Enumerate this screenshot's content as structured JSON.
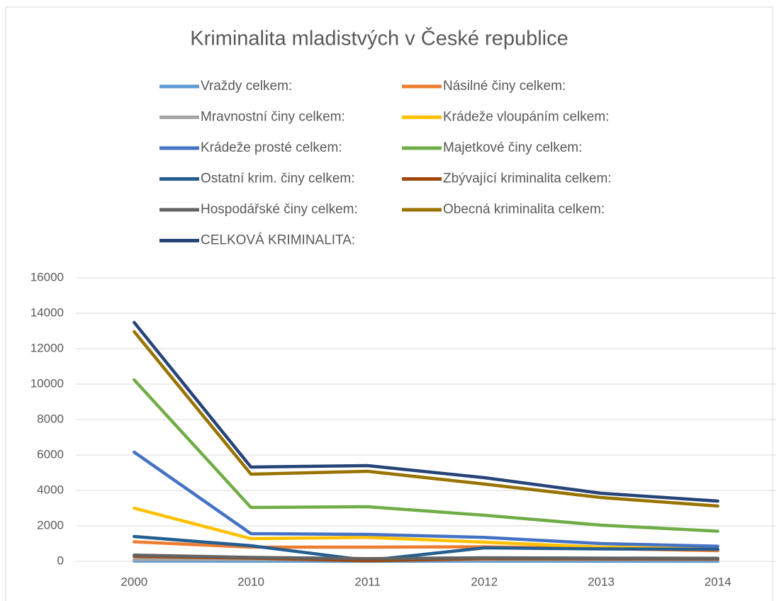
{
  "chart_data": {
    "type": "line",
    "title": "Kriminalita mladistvých v České republice",
    "categories": [
      "2000",
      "2010",
      "2011",
      "2012",
      "2013",
      "2014"
    ],
    "series": [
      {
        "name": "Vraždy celkem:",
        "color": "#5b9bd5",
        "values": [
          15,
          10,
          5,
          10,
          5,
          5
        ]
      },
      {
        "name": "Násilné činy celkem:",
        "color": "#ed7d31",
        "values": [
          1100,
          800,
          800,
          820,
          720,
          600
        ]
      },
      {
        "name": "Mravnostní činy celkem:",
        "color": "#a5a5a5",
        "values": [
          100,
          100,
          80,
          90,
          100,
          100
        ]
      },
      {
        "name": "Krádeže vloupáním celkem:",
        "color": "#ffc000",
        "values": [
          3000,
          1280,
          1350,
          1080,
          800,
          700
        ]
      },
      {
        "name": "Krádeže prosté celkem:",
        "color": "#4472c4",
        "values": [
          6160,
          1560,
          1520,
          1350,
          1000,
          850
        ]
      },
      {
        "name": "Majetkové činy celkem:",
        "color": "#70ad47",
        "values": [
          10240,
          3040,
          3080,
          2600,
          2040,
          1700
        ]
      },
      {
        "name": "Ostatní krim. činy celkem:",
        "color": "#255e91",
        "values": [
          1400,
          880,
          50,
          760,
          700,
          680
        ]
      },
      {
        "name": "Zbývající kriminalita celkem:",
        "color": "#9e480e",
        "values": [
          280,
          180,
          30,
          150,
          140,
          130
        ]
      },
      {
        "name": "Hospodářské činy celkem:",
        "color": "#636363",
        "values": [
          350,
          220,
          150,
          200,
          180,
          170
        ]
      },
      {
        "name": "Obecná kriminalita celkem:",
        "color": "#997300",
        "values": [
          12960,
          4920,
          5080,
          4360,
          3600,
          3120
        ]
      },
      {
        "name": "CELKOVÁ KRIMINALITA:",
        "color": "#264478",
        "values": [
          13480,
          5320,
          5400,
          4720,
          3840,
          3400
        ]
      }
    ],
    "ylim": [
      0,
      16000
    ],
    "yticks": [
      0,
      2000,
      4000,
      6000,
      8000,
      10000,
      12000,
      14000,
      16000
    ],
    "grid": true
  }
}
